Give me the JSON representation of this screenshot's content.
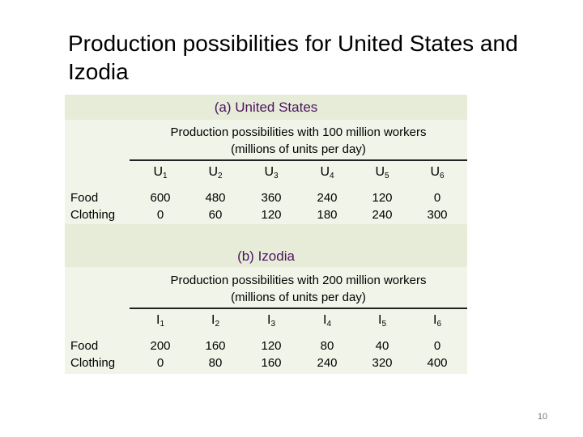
{
  "slide": {
    "title": "Production possibilities for United States and Izodia",
    "page_number": "10"
  },
  "us_table": {
    "section_title": "(a) United States",
    "subtitle_line1": "Production possibilities with 100 million workers",
    "subtitle_line2": "(millions of units per day)",
    "row_labels": [
      "Food",
      "Clothing"
    ],
    "columns": [
      {
        "letter": "U",
        "index": "1",
        "food": "600",
        "clothing": "0"
      },
      {
        "letter": "U",
        "index": "2",
        "food": "480",
        "clothing": "60"
      },
      {
        "letter": "U",
        "index": "3",
        "food": "360",
        "clothing": "120"
      },
      {
        "letter": "U",
        "index": "4",
        "food": "240",
        "clothing": "180"
      },
      {
        "letter": "U",
        "index": "5",
        "food": "120",
        "clothing": "240"
      },
      {
        "letter": "U",
        "index": "6",
        "food": "0",
        "clothing": "300"
      }
    ]
  },
  "izodia_table": {
    "section_title": "(b) Izodia",
    "subtitle_line1": "Production possibilities with 200 million workers",
    "subtitle_line2": "(millions of units per day)",
    "row_labels": [
      "Food",
      "Clothing"
    ],
    "columns": [
      {
        "letter": "I",
        "index": "1",
        "food": "200",
        "clothing": "0"
      },
      {
        "letter": "I",
        "index": "2",
        "food": "160",
        "clothing": "80"
      },
      {
        "letter": "I",
        "index": "3",
        "food": "120",
        "clothing": "160"
      },
      {
        "letter": "I",
        "index": "4",
        "food": "80",
        "clothing": "240"
      },
      {
        "letter": "I",
        "index": "5",
        "food": "40",
        "clothing": "320"
      },
      {
        "letter": "I",
        "index": "6",
        "food": "0",
        "clothing": "400"
      }
    ]
  }
}
